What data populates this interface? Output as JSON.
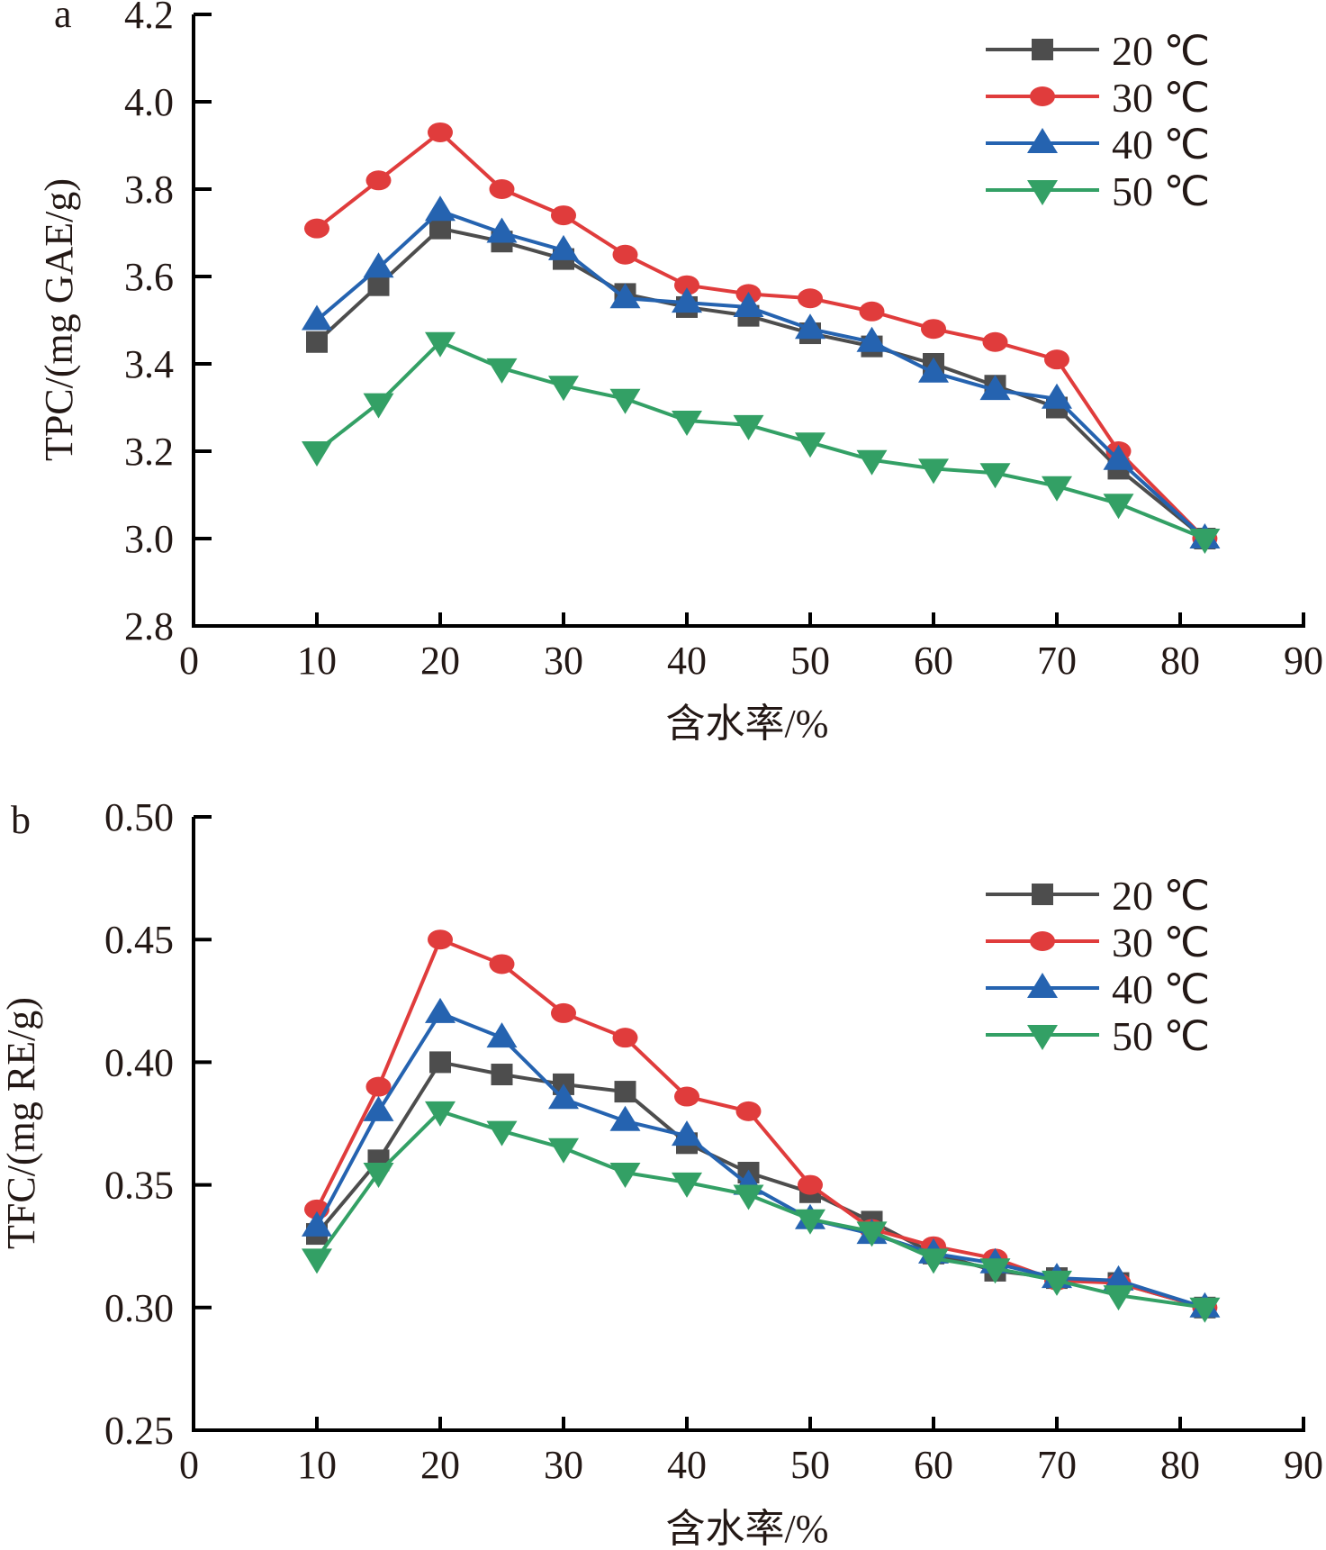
{
  "chart_data": [
    {
      "type": "line",
      "panel_label": "a",
      "title": "",
      "xlabel": "含水率/%",
      "ylabel": "TPC/(mg GAE/g)",
      "xlim": [
        0,
        90
      ],
      "ylim": [
        2.8,
        4.2
      ],
      "xticks": [
        "0",
        "10",
        "20",
        "30",
        "40",
        "50",
        "60",
        "70",
        "80",
        "90"
      ],
      "yticks": [
        "2.8",
        "3.0",
        "3.2",
        "3.4",
        "3.6",
        "3.8",
        "4.0",
        "4.2"
      ],
      "grid": false,
      "legend_position": "top-right",
      "x": [
        10,
        15,
        20,
        25,
        30,
        35,
        40,
        45,
        50,
        55,
        60,
        65,
        70,
        75,
        82
      ],
      "series": [
        {
          "name": "20 ℃",
          "marker": "square",
          "color": "#4d4d4d",
          "values": [
            3.45,
            3.58,
            3.71,
            3.68,
            3.64,
            3.56,
            3.53,
            3.51,
            3.47,
            3.44,
            3.4,
            3.35,
            3.3,
            3.16,
            3.0
          ]
        },
        {
          "name": "30 ℃",
          "marker": "circle",
          "color": "#e03c3c",
          "values": [
            3.71,
            3.82,
            3.93,
            3.8,
            3.74,
            3.65,
            3.58,
            3.56,
            3.55,
            3.52,
            3.48,
            3.45,
            3.41,
            3.2,
            3.0
          ]
        },
        {
          "name": "40 ℃",
          "marker": "triangle-up",
          "color": "#2563b0",
          "values": [
            3.5,
            3.62,
            3.75,
            3.7,
            3.66,
            3.55,
            3.54,
            3.53,
            3.48,
            3.45,
            3.38,
            3.34,
            3.32,
            3.18,
            3.0
          ]
        },
        {
          "name": "50 ℃",
          "marker": "triangle-down",
          "color": "#33a065",
          "values": [
            3.2,
            3.31,
            3.45,
            3.39,
            3.35,
            3.32,
            3.27,
            3.26,
            3.22,
            3.18,
            3.16,
            3.15,
            3.12,
            3.08,
            3.0
          ]
        }
      ]
    },
    {
      "type": "line",
      "panel_label": "b",
      "title": "",
      "xlabel": "含水率/%",
      "ylabel": "TFC/(mg RE/g)",
      "xlim": [
        0,
        90
      ],
      "ylim": [
        0.25,
        0.5
      ],
      "xticks": [
        "0",
        "10",
        "20",
        "30",
        "40",
        "50",
        "60",
        "70",
        "80",
        "90"
      ],
      "yticks": [
        "0.25",
        "0.30",
        "0.35",
        "0.40",
        "0.45",
        "0.50"
      ],
      "grid": false,
      "legend_position": "top-right",
      "x": [
        10,
        15,
        20,
        25,
        30,
        35,
        40,
        45,
        50,
        55,
        60,
        65,
        70,
        75,
        82
      ],
      "series": [
        {
          "name": "20 ℃",
          "marker": "square",
          "color": "#4d4d4d",
          "values": [
            0.33,
            0.36,
            0.4,
            0.395,
            0.391,
            0.388,
            0.367,
            0.355,
            0.347,
            0.335,
            0.322,
            0.315,
            0.312,
            0.31,
            0.3
          ]
        },
        {
          "name": "30 ℃",
          "marker": "circle",
          "color": "#e03c3c",
          "values": [
            0.34,
            0.39,
            0.45,
            0.44,
            0.42,
            0.41,
            0.386,
            0.38,
            0.35,
            0.332,
            0.325,
            0.32,
            0.311,
            0.31,
            0.3
          ]
        },
        {
          "name": "40 ℃",
          "marker": "triangle-up",
          "color": "#2563b0",
          "values": [
            0.333,
            0.38,
            0.42,
            0.41,
            0.385,
            0.376,
            0.37,
            0.35,
            0.336,
            0.33,
            0.322,
            0.318,
            0.312,
            0.311,
            0.3
          ]
        },
        {
          "name": "50 ℃",
          "marker": "triangle-down",
          "color": "#33a065",
          "values": [
            0.32,
            0.355,
            0.38,
            0.372,
            0.365,
            0.355,
            0.351,
            0.346,
            0.336,
            0.331,
            0.32,
            0.316,
            0.311,
            0.305,
            0.3
          ]
        }
      ]
    }
  ]
}
